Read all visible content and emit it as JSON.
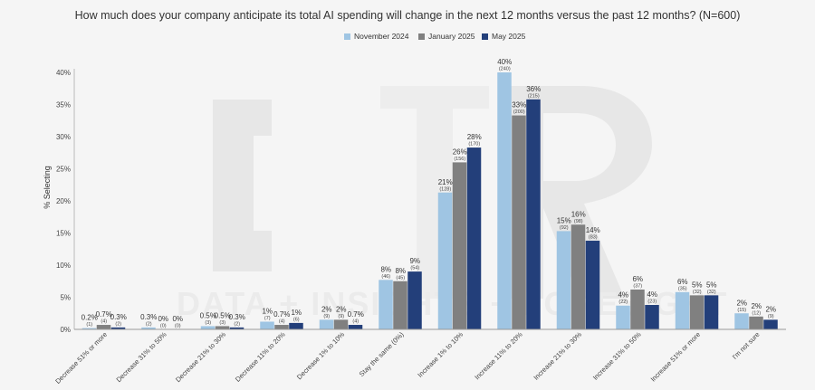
{
  "chart_data": {
    "type": "bar",
    "title": "How much does your company anticipate its total AI spending will change in the next 12 months versus the past 12 months? (N=600)",
    "ylabel": "% Selecting",
    "ylim": [
      0,
      40
    ],
    "yticks": [
      "0%",
      "5%",
      "10%",
      "15%",
      "20%",
      "25%",
      "30%",
      "35%",
      "40%"
    ],
    "grid": false,
    "legend_position": "top-center",
    "watermark": "ETR — DATA + INSIGHTS + FORESIGHT",
    "categories": [
      "Decrease 51% or more",
      "Decrease 31% to 50%",
      "Decrease 21% to 30%",
      "Decrease 11% to 20%",
      "Decrease 1% to 10%",
      "Stay the same (0%)",
      "Increase 1% to 10%",
      "Increase 11% to 20%",
      "Increase 21% to 30%",
      "Increase 31% to 50%",
      "Increase 51% or more",
      "I'm not sure"
    ],
    "series": [
      {
        "name": "November 2024",
        "color": "#9fc5e3",
        "values": [
          0.2,
          0.3,
          0.5,
          1.2,
          1.5,
          7.7,
          21.3,
          40.0,
          15.3,
          3.7,
          5.8,
          2.5
        ],
        "labels": [
          "0.2%",
          "0.3%",
          "0.5%",
          "1%",
          "2%",
          "8%",
          "21%",
          "40%",
          "15%",
          "4%",
          "6%",
          "2%"
        ],
        "counts": [
          "(1)",
          "(2)",
          "(3)",
          "(7)",
          "(9)",
          "(46)",
          "(128)",
          "(240)",
          "(92)",
          "(22)",
          "(35)",
          "(15)"
        ]
      },
      {
        "name": "January 2025",
        "color": "#808080",
        "values": [
          0.7,
          0.0,
          0.5,
          0.7,
          1.5,
          7.5,
          26.0,
          33.3,
          16.3,
          6.2,
          5.3,
          2.0
        ],
        "labels": [
          "0.7%",
          "0%",
          "0.5%",
          "0.7%",
          "2%",
          "8%",
          "26%",
          "33%",
          "16%",
          "6%",
          "5%",
          "2%"
        ],
        "counts": [
          "(4)",
          "(0)",
          "(3)",
          "(4)",
          "(9)",
          "(45)",
          "(156)",
          "(200)",
          "(98)",
          "(37)",
          "(32)",
          "(12)"
        ]
      },
      {
        "name": "May 2025",
        "color": "#233f7a",
        "values": [
          0.3,
          0.0,
          0.3,
          1.0,
          0.7,
          9.0,
          28.3,
          35.8,
          13.8,
          3.8,
          5.3,
          1.5
        ],
        "labels": [
          "0.3%",
          "0%",
          "0.3%",
          "1%",
          "0.7%",
          "9%",
          "28%",
          "36%",
          "14%",
          "4%",
          "5%",
          "2%"
        ],
        "counts": [
          "(2)",
          "(0)",
          "(2)",
          "(6)",
          "(4)",
          "(54)",
          "(170)",
          "(215)",
          "(83)",
          "(23)",
          "(32)",
          "(9)"
        ]
      }
    ]
  }
}
